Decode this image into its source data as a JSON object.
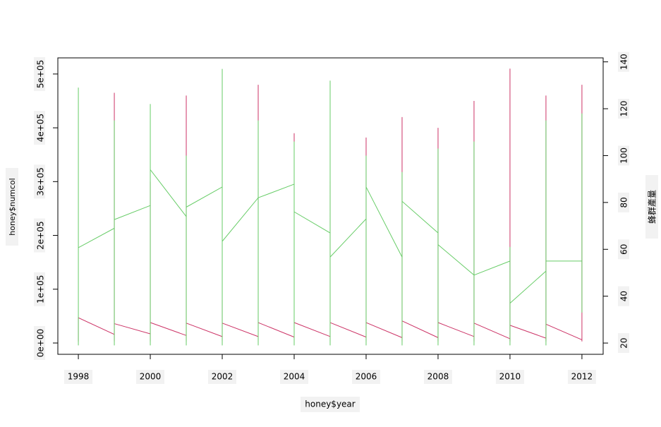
{
  "chart_data": {
    "type": "line",
    "xlabel": "honey$year",
    "ylabel": "honey$numcol",
    "y2label": "蜂群產量",
    "xlim": [
      1997.43,
      2012.59
    ],
    "xticks": [
      1998,
      2000,
      2002,
      2004,
      2006,
      2008,
      2010,
      2012
    ],
    "ylim": [
      -21000,
      530000
    ],
    "yticks": [
      {
        "value": 0,
        "label": "0e+00"
      },
      {
        "value": 100000,
        "label": "1e+05"
      },
      {
        "value": 200000,
        "label": "2e+05"
      },
      {
        "value": 300000,
        "label": "3e+05"
      },
      {
        "value": 400000,
        "label": "4e+05"
      },
      {
        "value": 500000,
        "label": "5e+05"
      }
    ],
    "y2lim": [
      15.2,
      141.7
    ],
    "y2ticks": [
      20,
      40,
      60,
      80,
      100,
      120,
      140
    ],
    "series": [
      {
        "color": "#cc3366",
        "axis": "y",
        "x": [
          1998,
          1998,
          1999,
          1999,
          1999,
          1999,
          2000,
          2000,
          2000,
          2000,
          2001,
          2001,
          2001,
          2001,
          2002,
          2002,
          2002,
          2002,
          2003,
          2003,
          2003,
          2003,
          2004,
          2004,
          2004,
          2004,
          2005,
          2005,
          2005,
          2005,
          2006,
          2006,
          2006,
          2006,
          2007,
          2007,
          2007,
          2007,
          2008,
          2008,
          2008,
          2008,
          2009,
          2009,
          2009,
          2009,
          2010,
          2010,
          2010,
          2010,
          2011,
          2011,
          2011,
          2011,
          2012,
          2012,
          2012
        ],
        "values": [
          3000,
          47000,
          16000,
          3000,
          465000,
          36000,
          17000,
          3000,
          300000,
          38000,
          14000,
          3000,
          460000,
          37000,
          12000,
          3000,
          80000,
          37000,
          12000,
          3000,
          480000,
          38000,
          11000,
          3000,
          390000,
          38000,
          12000,
          3000,
          300000,
          38000,
          11000,
          3000,
          382000,
          38000,
          10000,
          3000,
          420000,
          41000,
          10000,
          3000,
          400000,
          38000,
          12000,
          3000,
          450000,
          37000,
          8000,
          3000,
          510000,
          33000,
          9000,
          3000,
          460000,
          35000,
          6000,
          3000,
          480000
        ]
      },
      {
        "color": "#66cc66",
        "axis": "y2",
        "x": [
          1998,
          1998,
          1998,
          1999,
          1999,
          1999,
          1999,
          2000,
          2000,
          2000,
          2000,
          2001,
          2001,
          2001,
          2001,
          2002,
          2002,
          2002,
          2002,
          2003,
          2003,
          2003,
          2003,
          2004,
          2004,
          2004,
          2004,
          2005,
          2005,
          2005,
          2005,
          2006,
          2006,
          2006,
          2006,
          2007,
          2007,
          2007,
          2007,
          2008,
          2008,
          2008,
          2008,
          2009,
          2009,
          2009,
          2009,
          2010,
          2010,
          2010,
          2010,
          2011,
          2011,
          2011,
          2011,
          2012,
          2012,
          2012
        ],
        "values": [
          19,
          129,
          60.7,
          69,
          19,
          115,
          72.7,
          78.7,
          19,
          122,
          94,
          74,
          19,
          100,
          78,
          86.6,
          19,
          137,
          63.4,
          82,
          19,
          115,
          82,
          87.8,
          19,
          106,
          76,
          67,
          19,
          132,
          56.7,
          73,
          19,
          100,
          86.6,
          56.7,
          19,
          93,
          80.5,
          67,
          19,
          103,
          62,
          49,
          19,
          106,
          49,
          55,
          19,
          61,
          37,
          50.7,
          19,
          115,
          55,
          55,
          33,
          118
        ]
      }
    ]
  }
}
